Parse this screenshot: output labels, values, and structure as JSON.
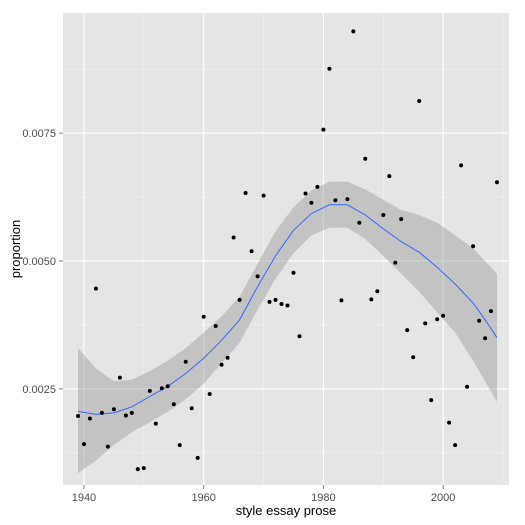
{
  "chart_data": {
    "type": "scatter",
    "xlabel": "style essay prose",
    "ylabel": "proportion",
    "xlim": [
      1936.5,
      2011
    ],
    "ylim": [
      0.00062,
      0.00985
    ],
    "x_ticks": [
      {
        "value": 1940,
        "label": "1940"
      },
      {
        "value": 1960,
        "label": "1960"
      },
      {
        "value": 1980,
        "label": "1980"
      },
      {
        "value": 2000,
        "label": "2000"
      }
    ],
    "y_ticks": [
      {
        "value": 0.0025,
        "label": "0.0025"
      },
      {
        "value": 0.005,
        "label": "0.0050"
      },
      {
        "value": 0.0075,
        "label": "0.0075"
      }
    ],
    "grid": true,
    "panel_background": "#e5e5e5",
    "grid_color": "#ffffff",
    "point_color": "#000000",
    "smooth_color": "#3366ff",
    "band_color": "#999999",
    "points": [
      [
        1939,
        0.00197
      ],
      [
        1940,
        0.00142
      ],
      [
        1941,
        0.00192
      ],
      [
        1942,
        0.00446
      ],
      [
        1943,
        0.00203
      ],
      [
        1944,
        0.00137
      ],
      [
        1945,
        0.0021
      ],
      [
        1946,
        0.00272
      ],
      [
        1947,
        0.00198
      ],
      [
        1948,
        0.00203
      ],
      [
        1949,
        0.00093
      ],
      [
        1950,
        0.00095
      ],
      [
        1951,
        0.00246
      ],
      [
        1952,
        0.00182
      ],
      [
        1953,
        0.00251
      ],
      [
        1954,
        0.00255
      ],
      [
        1955,
        0.0022
      ],
      [
        1956,
        0.0014
      ],
      [
        1957,
        0.00303
      ],
      [
        1958,
        0.00212
      ],
      [
        1959,
        0.00115
      ],
      [
        1960,
        0.00391
      ],
      [
        1961,
        0.0024
      ],
      [
        1962,
        0.00373
      ],
      [
        1963,
        0.00297
      ],
      [
        1964,
        0.00311
      ],
      [
        1965,
        0.00546
      ],
      [
        1966,
        0.00424
      ],
      [
        1967,
        0.00633
      ],
      [
        1968,
        0.00519
      ],
      [
        1969,
        0.0047
      ],
      [
        1970,
        0.00628
      ],
      [
        1971,
        0.0042
      ],
      [
        1972,
        0.00424
      ],
      [
        1973,
        0.00416
      ],
      [
        1974,
        0.00413
      ],
      [
        1975,
        0.00477
      ],
      [
        1976,
        0.00353
      ],
      [
        1977,
        0.00632
      ],
      [
        1978,
        0.00614
      ],
      [
        1979,
        0.00645
      ],
      [
        1980,
        0.00757
      ],
      [
        1981,
        0.00876
      ],
      [
        1982,
        0.00619
      ],
      [
        1983,
        0.00423
      ],
      [
        1984,
        0.00621
      ],
      [
        1985,
        0.00949
      ],
      [
        1986,
        0.00575
      ],
      [
        1987,
        0.007
      ],
      [
        1988,
        0.00425
      ],
      [
        1989,
        0.00441
      ],
      [
        1990,
        0.0059
      ],
      [
        1991,
        0.00666
      ],
      [
        1992,
        0.00497
      ],
      [
        1993,
        0.00582
      ],
      [
        1994,
        0.00365
      ],
      [
        1995,
        0.00312
      ],
      [
        1996,
        0.00813
      ],
      [
        1997,
        0.00378
      ],
      [
        1998,
        0.00228
      ],
      [
        1999,
        0.00386
      ],
      [
        2000,
        0.00393
      ],
      [
        2001,
        0.00184
      ],
      [
        2002,
        0.0014
      ],
      [
        2003,
        0.00687
      ],
      [
        2004,
        0.00254
      ],
      [
        2005,
        0.00529
      ],
      [
        2006,
        0.00383
      ],
      [
        2007,
        0.00349
      ],
      [
        2008,
        0.00402
      ],
      [
        2009,
        0.00654
      ]
    ],
    "smooth": [
      {
        "x": 1939,
        "y": 0.00206,
        "lo": 0.00085,
        "hi": 0.0033
      },
      {
        "x": 1942,
        "y": 0.002,
        "lo": 0.0011,
        "hi": 0.0029
      },
      {
        "x": 1945,
        "y": 0.00203,
        "lo": 0.0014,
        "hi": 0.00265
      },
      {
        "x": 1948,
        "y": 0.00215,
        "lo": 0.00165,
        "hi": 0.00268
      },
      {
        "x": 1951,
        "y": 0.00235,
        "lo": 0.00185,
        "hi": 0.00285
      },
      {
        "x": 1954,
        "y": 0.00255,
        "lo": 0.00205,
        "hi": 0.00305
      },
      {
        "x": 1957,
        "y": 0.0028,
        "lo": 0.0023,
        "hi": 0.0033
      },
      {
        "x": 1960,
        "y": 0.0031,
        "lo": 0.0026,
        "hi": 0.0036
      },
      {
        "x": 1963,
        "y": 0.00345,
        "lo": 0.003,
        "hi": 0.00392
      },
      {
        "x": 1966,
        "y": 0.00385,
        "lo": 0.0034,
        "hi": 0.0043
      },
      {
        "x": 1969,
        "y": 0.0045,
        "lo": 0.00405,
        "hi": 0.00495
      },
      {
        "x": 1972,
        "y": 0.0051,
        "lo": 0.00465,
        "hi": 0.00558
      },
      {
        "x": 1975,
        "y": 0.0056,
        "lo": 0.00515,
        "hi": 0.00605
      },
      {
        "x": 1978,
        "y": 0.00593,
        "lo": 0.0055,
        "hi": 0.00638
      },
      {
        "x": 1981,
        "y": 0.0061,
        "lo": 0.00565,
        "hi": 0.00655
      },
      {
        "x": 1984,
        "y": 0.0061,
        "lo": 0.00565,
        "hi": 0.00655
      },
      {
        "x": 1987,
        "y": 0.0059,
        "lo": 0.00543,
        "hi": 0.0064
      },
      {
        "x": 1990,
        "y": 0.00563,
        "lo": 0.0051,
        "hi": 0.0062
      },
      {
        "x": 1993,
        "y": 0.00538,
        "lo": 0.00475,
        "hi": 0.006
      },
      {
        "x": 1996,
        "y": 0.00517,
        "lo": 0.0044,
        "hi": 0.0059
      },
      {
        "x": 1999,
        "y": 0.00488,
        "lo": 0.004,
        "hi": 0.00575
      },
      {
        "x": 2002,
        "y": 0.00455,
        "lo": 0.0036,
        "hi": 0.0055
      },
      {
        "x": 2005,
        "y": 0.00418,
        "lo": 0.00305,
        "hi": 0.00525
      },
      {
        "x": 2007,
        "y": 0.00385,
        "lo": 0.00265,
        "hi": 0.005
      },
      {
        "x": 2009,
        "y": 0.0035,
        "lo": 0.00225,
        "hi": 0.00475
      }
    ]
  }
}
